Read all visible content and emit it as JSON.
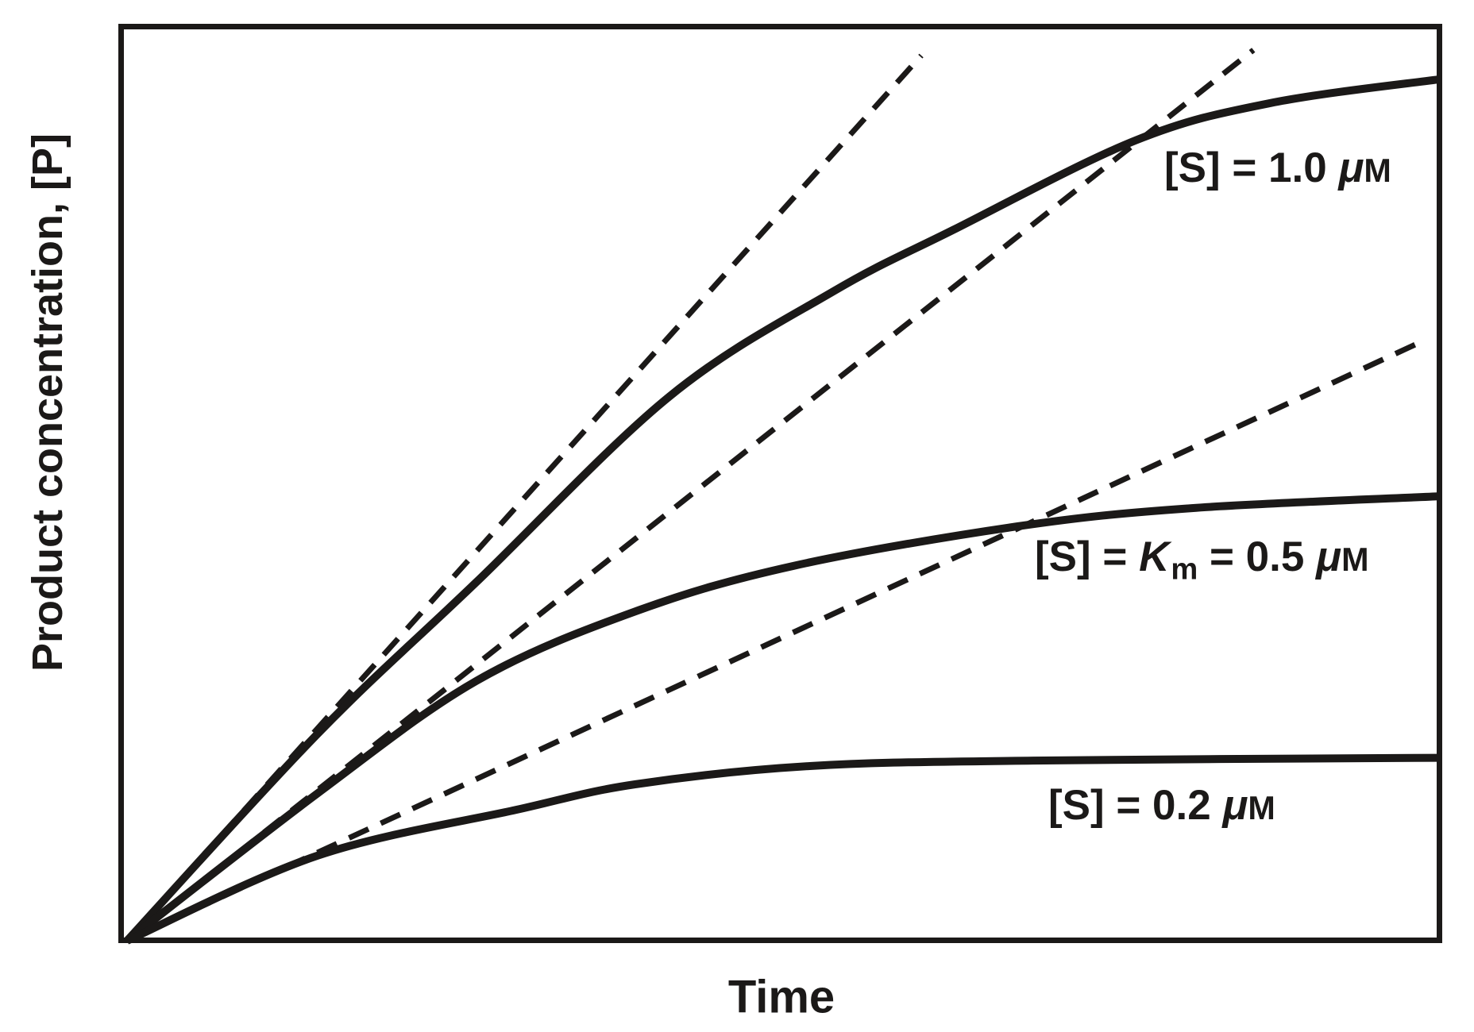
{
  "figure": {
    "background": "#ffffff",
    "ink_color": "#1b1918",
    "description": "Enzyme kinetics progress curves: product concentration vs time at three substrate concentrations, with dashed initial-velocity tangent lines from the origin"
  },
  "axes": {
    "x_label": "Time",
    "y_label": "Product concentration, [P]"
  },
  "curve_labels": {
    "s1": {
      "prefix": "[S] = 1.0 ",
      "mu": "μ",
      "unit": "M"
    },
    "s2": {
      "prefix": "[S] = ",
      "k": "K",
      "k_sub": "m",
      "mid": " = 0.5 ",
      "mu": "μ",
      "unit": "M"
    },
    "s3": {
      "prefix": "[S] = 0.2 ",
      "mu": "μ",
      "unit": "M"
    }
  },
  "chart_data": {
    "type": "line",
    "title": "",
    "xlabel": "Time",
    "ylabel": "Product concentration, [P]",
    "x_range": [
      0,
      1
    ],
    "y_range": [
      0,
      1
    ],
    "grid": false,
    "legend_position": "inline-labels",
    "axis_note": "Axes are qualitative (no tick marks or numeric scales); point values are normalized 0-1 fractions of the plotted axes",
    "series": [
      {
        "id": "tangent-s1",
        "name": "initial-velocity tangent, [S] = 1.0 μM",
        "line_style": "dashed",
        "points": [
          [
            0,
            0
          ],
          [
            0.605,
            0.968
          ]
        ]
      },
      {
        "id": "tangent-s2",
        "name": "initial-velocity tangent, [S] = Km = 0.5 μM",
        "line_style": "dashed",
        "points": [
          [
            0,
            0
          ],
          [
            0.858,
            0.974
          ]
        ]
      },
      {
        "id": "tangent-s3",
        "name": "initial-velocity tangent, [S] = 0.2 μM",
        "line_style": "dashed",
        "points": [
          [
            0,
            0
          ],
          [
            0.986,
            0.655
          ]
        ]
      },
      {
        "id": "curve-s1",
        "name": "[S] = 1.0 μM",
        "line_style": "solid",
        "points": [
          [
            0,
            0
          ],
          [
            0.145,
            0.226
          ],
          [
            0.266,
            0.392
          ],
          [
            0.413,
            0.595
          ],
          [
            0.538,
            0.71
          ],
          [
            0.629,
            0.777
          ],
          [
            0.768,
            0.875
          ],
          [
            0.871,
            0.916
          ],
          [
            1,
            0.942
          ]
        ]
      },
      {
        "id": "curve-s2",
        "name": "[S] = Km = 0.5 μM",
        "line_style": "solid",
        "points": [
          [
            0,
            0
          ],
          [
            0.145,
            0.161
          ],
          [
            0.266,
            0.284
          ],
          [
            0.387,
            0.36
          ],
          [
            0.508,
            0.41
          ],
          [
            0.678,
            0.453
          ],
          [
            0.811,
            0.473
          ],
          [
            1,
            0.486
          ]
        ]
      },
      {
        "id": "curve-s3",
        "name": "[S] = 0.2 μM",
        "line_style": "solid",
        "points": [
          [
            0,
            0
          ],
          [
            0.145,
            0.093
          ],
          [
            0.296,
            0.143
          ],
          [
            0.387,
            0.171
          ],
          [
            0.52,
            0.191
          ],
          [
            0.69,
            0.197
          ],
          [
            1,
            0.2
          ]
        ]
      }
    ]
  }
}
